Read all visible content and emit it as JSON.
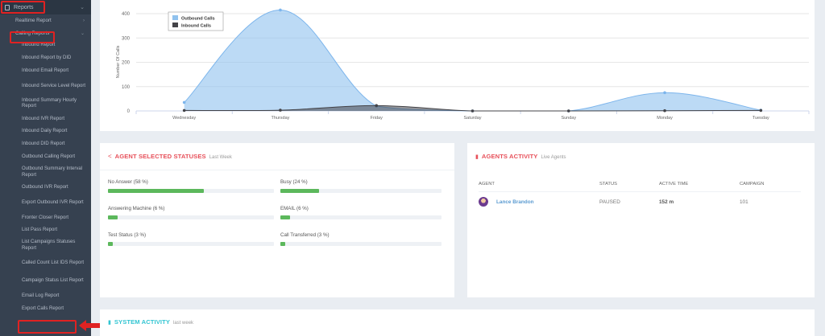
{
  "sidebar": {
    "header": "Reports",
    "groups": [
      {
        "label": "Realtime Report"
      },
      {
        "label": "Calling Reports"
      }
    ],
    "items": [
      "Inbound Report",
      "Inbound Report by DID",
      "Inbound Email Report",
      "Inbound Service Level Report",
      "Inbound Summary Hourly Report",
      "Inbound IVR Report",
      "Inbound Daily Report",
      "Inbound DID Report",
      "Outbound Calling Report",
      "Outbound Summary Interval Report",
      "Outbound IVR Report",
      "Export Outbound IVR Report",
      "Fronter Closer Report",
      "List Pass Report",
      "List Campaigns Statuses Report",
      "Called Count List IDS Report",
      "Campaign Status List Report",
      "Email Log Report",
      "Export Calls Report"
    ]
  },
  "chart_data": {
    "type": "area",
    "categories": [
      "Wednesday",
      "Thursday",
      "Friday",
      "Saturday",
      "Sunday",
      "Monday",
      "Tuesday"
    ],
    "series": [
      {
        "name": "Outbound Calls",
        "values": [
          35,
          415,
          20,
          0,
          0,
          75,
          3
        ],
        "color": "#90c2ee"
      },
      {
        "name": "Inbound Calls",
        "values": [
          2,
          3,
          22,
          0,
          0,
          1,
          2
        ],
        "color": "#434348"
      }
    ],
    "ylabel": "Number Of Calls",
    "ylim": [
      0,
      400
    ],
    "yticks": [
      0,
      100,
      200,
      300,
      400
    ],
    "legend": "top-left",
    "grid": true
  },
  "statuses": {
    "title": "AGENT SELECTED STATUSES",
    "subtitle": "Last Week",
    "items": [
      {
        "label": "No Answer (58 %)",
        "pct": 58
      },
      {
        "label": "Busy (24 %)",
        "pct": 24
      },
      {
        "label": "Answering Machine (6 %)",
        "pct": 6
      },
      {
        "label": "EMAIL (6 %)",
        "pct": 6
      },
      {
        "label": "Test Status (3 %)",
        "pct": 3
      },
      {
        "label": "Call Transferred (3 %)",
        "pct": 3
      }
    ]
  },
  "agents": {
    "title": "AGENTS ACTIVITY",
    "subtitle": "Live Agents",
    "columns": [
      "AGENT",
      "STATUS",
      "ACTIVE TIME",
      "CAMPAIGN"
    ],
    "rows": [
      {
        "agent": "Lance Brandon",
        "status": "PAUSED",
        "active_time": "152 m",
        "campaign": "101"
      }
    ]
  },
  "system": {
    "title": "SYSTEM ACTIVITY",
    "subtitle": "last week"
  },
  "colors": {
    "sidebar": "#364150",
    "accent_red": "#e7505a",
    "accent_teal": "#32c5d2",
    "bar_green": "#5cb85c",
    "highlight": "#e02222"
  }
}
